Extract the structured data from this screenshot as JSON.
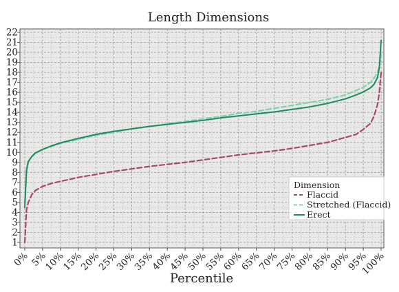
{
  "chart_data": {
    "type": "line",
    "title": "Length Dimensions",
    "xlabel": "Percentile",
    "ylabel": "",
    "xlim": [
      0,
      100
    ],
    "ylim": [
      1,
      22
    ],
    "x_ticks": [
      "0%",
      "5%",
      "10%",
      "15%",
      "20%",
      "25%",
      "30%",
      "35%",
      "40%",
      "45%",
      "50%",
      "55%",
      "60%",
      "65%",
      "70%",
      "75%",
      "80%",
      "85%",
      "90%",
      "95%",
      "100%"
    ],
    "y_ticks": [
      1,
      2,
      3,
      4,
      5,
      6,
      7,
      8,
      9,
      10,
      11,
      12,
      13,
      14,
      15,
      16,
      17,
      18,
      19,
      20,
      21,
      22
    ],
    "grid": true,
    "legend": {
      "title": "Dimension",
      "placement": "lower-right"
    },
    "series": [
      {
        "name": "Flaccid",
        "color": "#a8486a",
        "dash": "dashed",
        "x": [
          0,
          0.5,
          1,
          2,
          3,
          5,
          7.5,
          10,
          15,
          20,
          25,
          30,
          35,
          40,
          45,
          50,
          55,
          60,
          65,
          70,
          75,
          80,
          85,
          90,
          93,
          95,
          97,
          98,
          99,
          99.5,
          100
        ],
        "y": [
          1.0,
          4.3,
          5.0,
          5.8,
          6.2,
          6.6,
          6.9,
          7.1,
          7.5,
          7.8,
          8.1,
          8.35,
          8.6,
          8.8,
          9.0,
          9.25,
          9.5,
          9.75,
          9.95,
          10.15,
          10.4,
          10.7,
          11.0,
          11.5,
          11.8,
          12.3,
          12.9,
          13.6,
          14.8,
          16.0,
          18.0
        ]
      },
      {
        "name": "Stretched (Flaccid)",
        "color": "#7fd3b5",
        "dash": "dashed",
        "x": [
          0,
          0.5,
          1,
          2,
          3,
          5,
          7.5,
          10,
          15,
          20,
          25,
          30,
          35,
          40,
          45,
          50,
          55,
          60,
          65,
          70,
          75,
          80,
          85,
          90,
          93,
          95,
          97,
          98,
          99,
          99.5,
          100
        ],
        "y": [
          5.0,
          8.0,
          9.0,
          9.6,
          9.9,
          10.3,
          10.6,
          10.9,
          11.3,
          11.7,
          12.0,
          12.35,
          12.6,
          12.85,
          13.1,
          13.35,
          13.6,
          13.9,
          14.1,
          14.4,
          14.7,
          15.0,
          15.3,
          15.75,
          16.2,
          16.5,
          17.0,
          17.4,
          18.0,
          18.6,
          19.8
        ]
      },
      {
        "name": "Erect",
        "color": "#1e8a5e",
        "dash": "solid",
        "x": [
          0,
          0.5,
          1,
          2,
          3,
          5,
          7.5,
          10,
          15,
          20,
          25,
          30,
          35,
          40,
          45,
          50,
          55,
          60,
          65,
          70,
          75,
          80,
          85,
          90,
          93,
          95,
          97,
          98,
          99,
          99.5,
          100
        ],
        "y": [
          4.5,
          8.3,
          9.1,
          9.6,
          9.95,
          10.3,
          10.65,
          10.95,
          11.4,
          11.8,
          12.1,
          12.35,
          12.6,
          12.8,
          13.0,
          13.2,
          13.45,
          13.65,
          13.85,
          14.05,
          14.3,
          14.55,
          14.9,
          15.35,
          15.75,
          16.05,
          16.45,
          16.8,
          17.5,
          18.5,
          21.2
        ]
      }
    ]
  }
}
